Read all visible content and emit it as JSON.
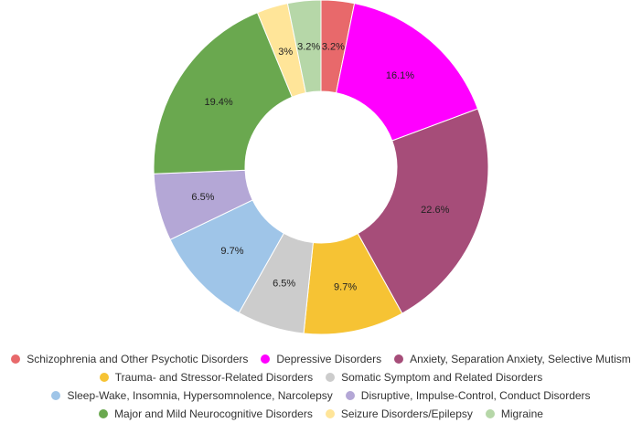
{
  "chart_data": {
    "type": "pie",
    "donut": true,
    "title": "",
    "legend_position": "bottom",
    "categories": [
      "Schizophrenia and Other Psychotic Disorders",
      "Depressive Disorders",
      "Anxiety, Separation Anxiety, Selective Mutism",
      "Trauma- and Stressor-Related Disorders",
      "Somatic Symptom and Related Disorders",
      "Sleep-Wake, Insomnia, Hypersomnolence, Narcolepsy",
      "Disruptive, Impulse-Control, Conduct Disorders",
      "Major and Mild Neurocognitive Disorders",
      "Seizure Disorders/Epilepsy",
      "Migraine"
    ],
    "values": [
      3.2,
      16.1,
      22.6,
      9.7,
      6.5,
      9.7,
      6.5,
      19.4,
      3,
      3.2
    ],
    "data_labels": [
      "3.2%",
      "16.1%",
      "22.6%",
      "9.7%",
      "6.5%",
      "9.7%",
      "6.5%",
      "19.4%",
      "3%",
      "3.2%"
    ],
    "colors": [
      "#e8696b",
      "#ff00ff",
      "#a64d79",
      "#f6c334",
      "#cccccc",
      "#9fc5e8",
      "#b4a7d6",
      "#6aa84f",
      "#ffe599",
      "#b6d7a8"
    ]
  },
  "legend_rows": [
    [
      0,
      1,
      2
    ],
    [
      3,
      4
    ],
    [
      5,
      6
    ],
    [
      7,
      8,
      9
    ]
  ]
}
